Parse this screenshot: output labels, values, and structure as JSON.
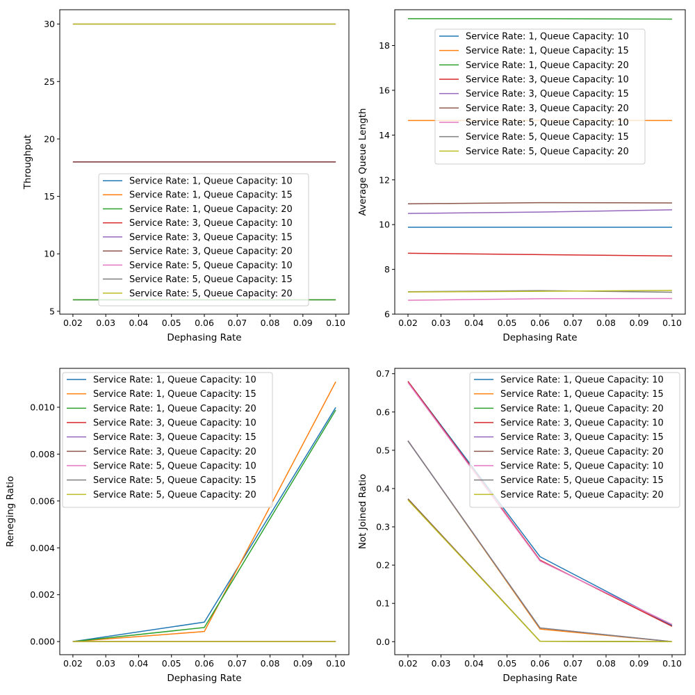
{
  "colors": [
    "#1f77b4",
    "#ff7f0e",
    "#2ca02c",
    "#d62728",
    "#9467bd",
    "#8c564b",
    "#e377c2",
    "#7f7f7f",
    "#bcbd22"
  ],
  "series_names": [
    "Service Rate: 1, Queue Capacity: 10",
    "Service Rate: 1, Queue Capacity: 15",
    "Service Rate: 1, Queue Capacity: 20",
    "Service Rate: 3, Queue Capacity: 10",
    "Service Rate: 3, Queue Capacity: 15",
    "Service Rate: 3, Queue Capacity: 20",
    "Service Rate: 5, Queue Capacity: 10",
    "Service Rate: 5, Queue Capacity: 15",
    "Service Rate: 5, Queue Capacity: 20"
  ],
  "chart_data": [
    {
      "type": "line",
      "title": "",
      "xlabel": "Dephasing Rate",
      "ylabel": "Throughput",
      "x": [
        0.02,
        0.06,
        0.1
      ],
      "xlim": [
        0.016,
        0.104
      ],
      "ylim": [
        4.75,
        31.25
      ],
      "xticks": [
        0.02,
        0.03,
        0.04,
        0.05,
        0.06,
        0.07,
        0.08,
        0.09,
        0.1
      ],
      "xtick_labels": [
        "0.02",
        "0.03",
        "0.04",
        "0.05",
        "0.06",
        "0.07",
        "0.08",
        "0.09",
        "0.10"
      ],
      "yticks": [
        5,
        10,
        15,
        20,
        25,
        30
      ],
      "ytick_labels": [
        "5",
        "10",
        "15",
        "20",
        "25",
        "30"
      ],
      "legend": "center",
      "series": [
        {
          "name": "Service Rate: 1, Queue Capacity: 10",
          "values": [
            6,
            6,
            6
          ]
        },
        {
          "name": "Service Rate: 1, Queue Capacity: 15",
          "values": [
            6,
            6,
            6
          ]
        },
        {
          "name": "Service Rate: 1, Queue Capacity: 20",
          "values": [
            6,
            6,
            6
          ]
        },
        {
          "name": "Service Rate: 3, Queue Capacity: 10",
          "values": [
            18,
            18,
            18
          ]
        },
        {
          "name": "Service Rate: 3, Queue Capacity: 15",
          "values": [
            18,
            18,
            18
          ]
        },
        {
          "name": "Service Rate: 3, Queue Capacity: 20",
          "values": [
            18,
            18,
            18
          ]
        },
        {
          "name": "Service Rate: 5, Queue Capacity: 10",
          "values": [
            30,
            30,
            30
          ]
        },
        {
          "name": "Service Rate: 5, Queue Capacity: 15",
          "values": [
            30,
            30,
            30
          ]
        },
        {
          "name": "Service Rate: 5, Queue Capacity: 20",
          "values": [
            30,
            30,
            30
          ]
        }
      ]
    },
    {
      "type": "line",
      "title": "",
      "xlabel": "Dephasing Rate",
      "ylabel": "Average Queue Length",
      "x": [
        0.02,
        0.06,
        0.1
      ],
      "xlim": [
        0.016,
        0.104
      ],
      "ylim": [
        6.0,
        19.6
      ],
      "xticks": [
        0.02,
        0.03,
        0.04,
        0.05,
        0.06,
        0.07,
        0.08,
        0.09,
        0.1
      ],
      "xtick_labels": [
        "0.02",
        "0.03",
        "0.04",
        "0.05",
        "0.06",
        "0.07",
        "0.08",
        "0.09",
        "0.10"
      ],
      "yticks": [
        6,
        8,
        10,
        12,
        14,
        16,
        18
      ],
      "ytick_labels": [
        "6",
        "8",
        "10",
        "12",
        "14",
        "16",
        "18"
      ],
      "legend": "upper center",
      "series": [
        {
          "name": "Service Rate: 1, Queue Capacity: 10",
          "values": [
            9.88,
            9.88,
            9.88
          ]
        },
        {
          "name": "Service Rate: 1, Queue Capacity: 15",
          "values": [
            14.65,
            14.65,
            14.65
          ]
        },
        {
          "name": "Service Rate: 1, Queue Capacity: 20",
          "values": [
            19.2,
            19.2,
            19.18
          ]
        },
        {
          "name": "Service Rate: 3, Queue Capacity: 10",
          "values": [
            8.72,
            8.66,
            8.6
          ]
        },
        {
          "name": "Service Rate: 3, Queue Capacity: 15",
          "values": [
            10.5,
            10.56,
            10.66
          ]
        },
        {
          "name": "Service Rate: 3, Queue Capacity: 20",
          "values": [
            10.93,
            10.98,
            10.97
          ]
        },
        {
          "name": "Service Rate: 5, Queue Capacity: 10",
          "values": [
            6.62,
            6.69,
            6.7
          ]
        },
        {
          "name": "Service Rate: 5, Queue Capacity: 15",
          "values": [
            7.0,
            7.05,
            6.98
          ]
        },
        {
          "name": "Service Rate: 5, Queue Capacity: 20",
          "values": [
            6.99,
            7.02,
            7.06
          ]
        }
      ]
    },
    {
      "type": "line",
      "title": "",
      "xlabel": "Dephasing Rate",
      "ylabel": "Reneging Ratio",
      "x": [
        0.02,
        0.06,
        0.1
      ],
      "xlim": [
        0.016,
        0.104
      ],
      "ylim": [
        -0.00056,
        0.01166
      ],
      "xticks": [
        0.02,
        0.03,
        0.04,
        0.05,
        0.06,
        0.07,
        0.08,
        0.09,
        0.1
      ],
      "xtick_labels": [
        "0.02",
        "0.03",
        "0.04",
        "0.05",
        "0.06",
        "0.07",
        "0.08",
        "0.09",
        "0.10"
      ],
      "yticks": [
        0,
        0.002,
        0.004,
        0.006,
        0.008,
        0.01
      ],
      "ytick_labels": [
        "0.000",
        "0.002",
        "0.004",
        "0.006",
        "0.008",
        "0.010"
      ],
      "legend": "upper left",
      "series": [
        {
          "name": "Service Rate: 1, Queue Capacity: 10",
          "values": [
            0,
            0.00083,
            0.00999
          ]
        },
        {
          "name": "Service Rate: 1, Queue Capacity: 15",
          "values": [
            0,
            0.00043,
            0.01109
          ]
        },
        {
          "name": "Service Rate: 1, Queue Capacity: 20",
          "values": [
            0,
            0.0006,
            0.00988
          ]
        },
        {
          "name": "Service Rate: 3, Queue Capacity: 10",
          "values": [
            0,
            0,
            0
          ]
        },
        {
          "name": "Service Rate: 3, Queue Capacity: 15",
          "values": [
            0,
            0,
            0
          ]
        },
        {
          "name": "Service Rate: 3, Queue Capacity: 20",
          "values": [
            0,
            0,
            0
          ]
        },
        {
          "name": "Service Rate: 5, Queue Capacity: 10",
          "values": [
            0,
            0,
            0
          ]
        },
        {
          "name": "Service Rate: 5, Queue Capacity: 15",
          "values": [
            0,
            0,
            0
          ]
        },
        {
          "name": "Service Rate: 5, Queue Capacity: 20",
          "values": [
            0,
            0,
            0
          ]
        }
      ]
    },
    {
      "type": "line",
      "title": "",
      "xlabel": "Dephasing Rate",
      "ylabel": "Not Joined Ratio",
      "x": [
        0.02,
        0.06,
        0.1
      ],
      "xlim": [
        0.016,
        0.104
      ],
      "ylim": [
        -0.034,
        0.714
      ],
      "xticks": [
        0.02,
        0.03,
        0.04,
        0.05,
        0.06,
        0.07,
        0.08,
        0.09,
        0.1
      ],
      "xtick_labels": [
        "0.02",
        "0.03",
        "0.04",
        "0.05",
        "0.06",
        "0.07",
        "0.08",
        "0.09",
        "0.10"
      ],
      "yticks": [
        0,
        0.1,
        0.2,
        0.3,
        0.4,
        0.5,
        0.6,
        0.7
      ],
      "ytick_labels": [
        "0.0",
        "0.1",
        "0.2",
        "0.3",
        "0.4",
        "0.5",
        "0.6",
        "0.7"
      ],
      "legend": "upper right",
      "series": [
        {
          "name": "Service Rate: 1, Queue Capacity: 10",
          "values": [
            0.68,
            0.222,
            0.042
          ]
        },
        {
          "name": "Service Rate: 1, Queue Capacity: 15",
          "values": [
            0.525,
            0.033,
            0.0
          ]
        },
        {
          "name": "Service Rate: 1, Queue Capacity: 20",
          "values": [
            0.373,
            0.001,
            0.0
          ]
        },
        {
          "name": "Service Rate: 3, Queue Capacity: 10",
          "values": [
            0.68,
            0.213,
            0.04
          ]
        },
        {
          "name": "Service Rate: 3, Queue Capacity: 15",
          "values": [
            0.525,
            0.036,
            0.0
          ]
        },
        {
          "name": "Service Rate: 3, Queue Capacity: 20",
          "values": [
            0.373,
            0.001,
            0.0
          ]
        },
        {
          "name": "Service Rate: 5, Queue Capacity: 10",
          "values": [
            0.677,
            0.211,
            0.045
          ]
        },
        {
          "name": "Service Rate: 5, Queue Capacity: 15",
          "values": [
            0.524,
            0.036,
            0.0
          ]
        },
        {
          "name": "Service Rate: 5, Queue Capacity: 20",
          "values": [
            0.37,
            0.001,
            0.0
          ]
        }
      ]
    }
  ]
}
